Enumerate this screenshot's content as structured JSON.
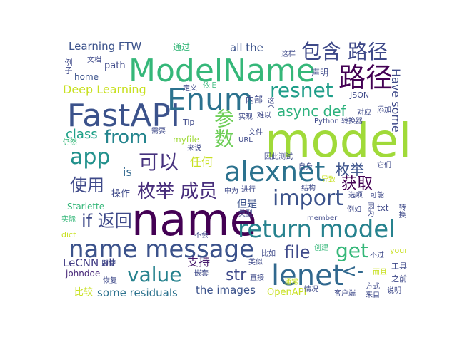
{
  "palette": {
    "dark_purple": "#440154",
    "indigo": "#3b528b",
    "blue": "#31688e",
    "teal": "#21918c",
    "green": "#35b779",
    "lime": "#90d743",
    "yellow": "#c8e020"
  },
  "words": [
    {
      "text": "model",
      "color": "#a0da39"
    },
    {
      "text": "name",
      "color": "#440154"
    },
    {
      "text": "ModelName",
      "color": "#35b779"
    },
    {
      "text": "FastAPI",
      "color": "#3b528b"
    },
    {
      "text": "Enum",
      "color": "#2c728e"
    },
    {
      "text": "return model",
      "color": "#26828e"
    },
    {
      "text": "name message",
      "color": "#3b528b"
    },
    {
      "text": "lenet",
      "color": "#31688e"
    },
    {
      "text": "alexnet",
      "color": "#2c728e"
    },
    {
      "text": "路径",
      "color": "#440154"
    },
    {
      "text": "包含 路径",
      "color": "#3e4989"
    },
    {
      "text": "resnet",
      "color": "#1f9e89"
    },
    {
      "text": "import",
      "color": "#3b528b"
    },
    {
      "text": "app",
      "color": "#21918c"
    },
    {
      "text": "from",
      "color": "#25858e"
    },
    {
      "text": "value",
      "color": "#26828e"
    },
    {
      "text": "可以",
      "color": "#46327e"
    },
    {
      "text": "参数",
      "color": "#6ece58"
    },
    {
      "text": "枚举 成员",
      "color": "#472d7b"
    },
    {
      "text": "get",
      "color": "#35b779"
    },
    {
      "text": "if 返回",
      "color": "#3e4989"
    },
    {
      "text": "file",
      "color": "#3e4989"
    },
    {
      "text": "async def",
      "color": "#2db27d"
    },
    {
      "text": "使用",
      "color": "#3e4989"
    },
    {
      "text": "获取",
      "color": "#440154"
    },
    {
      "text": "枚举",
      "color": "#3b528b"
    },
    {
      "text": "class",
      "color": "#1fa188"
    },
    {
      "text": "str",
      "color": "#3e4989"
    },
    {
      "text": "<-",
      "color": "#31688e"
    },
    {
      "text": "Have some",
      "color": "#3e4989"
    },
    {
      "text": "Learning FTW",
      "color": "#3b528b"
    },
    {
      "text": "Deep Learning",
      "color": "#c8e020"
    },
    {
      "text": "all the",
      "color": "#3b528b"
    },
    {
      "text": "LeCNN all",
      "color": "#433e85"
    },
    {
      "text": "some residuals",
      "color": "#2c728e"
    },
    {
      "text": "the images",
      "color": "#3b528b"
    },
    {
      "text": "支持",
      "color": "#481a6c"
    },
    {
      "text": "is",
      "color": "#31688e"
    },
    {
      "text": "任何",
      "color": "#c8e020"
    },
    {
      "text": "但是",
      "color": "#3b528b"
    },
    {
      "text": "操作",
      "color": "#3e4989"
    },
    {
      "text": "OpenAPI",
      "color": "#c8e020"
    },
    {
      "text": "比较",
      "color": "#c8e020"
    },
    {
      "text": "home",
      "color": "#3b528b"
    },
    {
      "text": "path",
      "color": "#3e4989"
    },
    {
      "text": "通过",
      "color": "#35b779"
    },
    {
      "text": "声明",
      "color": "#3e4989"
    },
    {
      "text": "JSON",
      "color": "#3e4989"
    },
    {
      "text": "Starlette",
      "color": "#35b779"
    },
    {
      "text": "myfile",
      "color": "#a0da39"
    },
    {
      "text": "johndoe",
      "color": "#482878"
    },
    {
      "text": "Python",
      "color": "#3e4989"
    },
    {
      "text": "txt",
      "color": "#3e4989"
    },
    {
      "text": "your",
      "color": "#c8e020"
    },
    {
      "text": "Tip",
      "color": "#3e4989"
    },
    {
      "text": "URL",
      "color": "#3e4989"
    },
    {
      "text": "member",
      "color": "#3e4989"
    },
    {
      "text": "dict",
      "color": "#c8e020"
    },
    {
      "text": "工具",
      "color": "#3e4989"
    },
    {
      "text": "之前",
      "color": "#3e4989"
    },
    {
      "text": "来自",
      "color": "#3e4989"
    },
    {
      "text": "方式",
      "color": "#3e4989"
    },
    {
      "text": "说明",
      "color": "#3e4989"
    },
    {
      "text": "实际",
      "color": "#35b779"
    },
    {
      "text": "情况",
      "color": "#3e4989"
    },
    {
      "text": "客户端",
      "color": "#3e4989"
    },
    {
      "text": "直接",
      "color": "#3e4989"
    },
    {
      "text": "类似",
      "color": "#3e4989"
    },
    {
      "text": "比如",
      "color": "#3e4989"
    },
    {
      "text": "创建",
      "color": "#35b779"
    },
    {
      "text": "不过",
      "color": "#3e4989"
    },
    {
      "text": "即使",
      "color": "#3e4989"
    },
    {
      "text": "恢复",
      "color": "#3e4989"
    },
    {
      "text": "嵌套",
      "color": "#3e4989"
    },
    {
      "text": "不会",
      "color": "#3e4989"
    },
    {
      "text": "类型",
      "color": "#3e4989"
    },
    {
      "text": "进行",
      "color": "#3e4989"
    },
    {
      "text": "中为",
      "color": "#3e4989"
    },
    {
      "text": "结构",
      "color": "#3e4989"
    },
    {
      "text": "导致",
      "color": "#c8e020"
    },
    {
      "text": "可能",
      "color": "#3e4989"
    },
    {
      "text": "因此测试",
      "color": "#3e4989"
    },
    {
      "text": "自身",
      "color": "#3e4989"
    },
    {
      "text": "它们",
      "color": "#3e4989"
    },
    {
      "text": "文件",
      "color": "#3e4989"
    },
    {
      "text": "转换器",
      "color": "#3e4989"
    },
    {
      "text": "添加",
      "color": "#3e4989"
    },
    {
      "text": "对应",
      "color": "#3e4989"
    },
    {
      "text": "难以",
      "color": "#3e4989"
    },
    {
      "text": "实现",
      "color": "#3e4989"
    },
    {
      "text": "内部",
      "color": "#3e4989"
    },
    {
      "text": "这个",
      "color": "#3e4989"
    },
    {
      "text": "依旧",
      "color": "#35b779"
    },
    {
      "text": "定义",
      "color": "#3e4989"
    },
    {
      "text": "需要",
      "color": "#3e4989"
    },
    {
      "text": "来说",
      "color": "#3e4989"
    },
    {
      "text": "仍然",
      "color": "#35b779"
    },
    {
      "text": "文档",
      "color": "#3e4989"
    },
    {
      "text": "例子",
      "color": "#3e4989"
    },
    {
      "text": "这样",
      "color": "#3e4989"
    },
    {
      "text": "选项",
      "color": "#3e4989"
    },
    {
      "text": "例如",
      "color": "#3e4989"
    },
    {
      "text": "因为",
      "color": "#3e4989"
    },
    {
      "text": "转换",
      "color": "#3e4989"
    },
    {
      "text": "而且",
      "color": "#c8e020"
    },
    {
      "text": "通常",
      "color": "#c8e020"
    }
  ]
}
